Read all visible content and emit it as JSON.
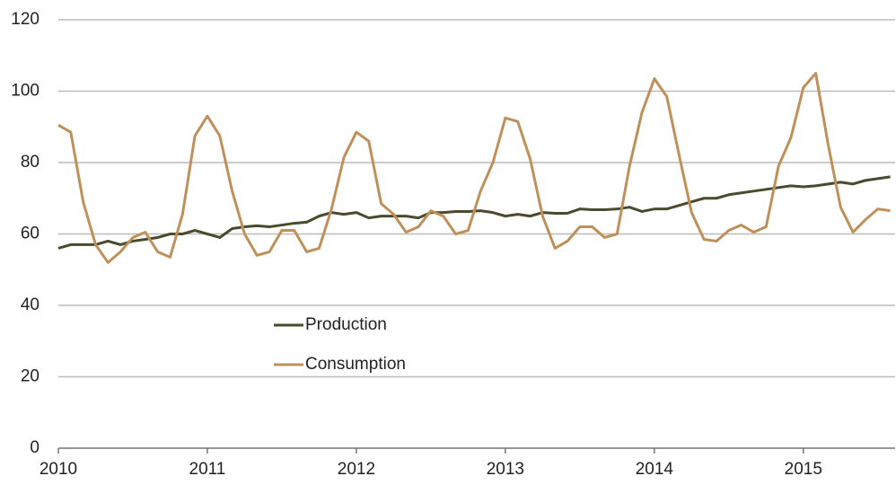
{
  "chart_data": {
    "type": "line",
    "categories": [
      "2010",
      null,
      null,
      null,
      null,
      null,
      null,
      null,
      null,
      null,
      null,
      null,
      "2011",
      null,
      null,
      null,
      null,
      null,
      null,
      null,
      null,
      null,
      null,
      null,
      "2012",
      null,
      null,
      null,
      null,
      null,
      null,
      null,
      null,
      null,
      null,
      null,
      "2013",
      null,
      null,
      null,
      null,
      null,
      null,
      null,
      null,
      null,
      null,
      null,
      "2014",
      null,
      null,
      null,
      null,
      null,
      null,
      null,
      null,
      null,
      null,
      null,
      "2015",
      null,
      null,
      null,
      null,
      null,
      null,
      null
    ],
    "series": [
      {
        "name": "Production",
        "color": "#4a4a2c",
        "values": [
          56,
          57,
          57,
          57,
          58,
          57,
          58,
          58.5,
          59,
          60,
          60,
          61,
          60,
          59,
          61.5,
          62,
          62.3,
          62,
          62.5,
          63,
          63.3,
          65,
          66,
          65.5,
          66,
          64.5,
          65,
          65,
          65,
          64.5,
          66,
          66,
          66.3,
          66.3,
          66.5,
          66,
          65,
          65.5,
          65,
          66,
          65.8,
          65.8,
          67,
          66.8,
          66.8,
          67,
          67.5,
          66.3,
          67,
          67,
          68,
          69,
          70,
          70,
          71,
          71.5,
          72,
          72.5,
          73,
          73.5,
          73.2,
          73.5,
          74,
          74.5,
          74,
          75,
          75.5,
          76
        ]
      },
      {
        "name": "Consumption",
        "color": "#c0905a",
        "values": [
          90.5,
          88.5,
          69,
          57,
          52,
          55,
          59,
          60.5,
          55,
          53.5,
          65.5,
          87.5,
          93,
          87.5,
          72,
          60,
          54,
          55,
          61,
          61,
          55,
          56,
          67,
          81.5,
          88.5,
          86,
          68.5,
          65.5,
          60.5,
          62,
          66.5,
          65,
          60,
          61,
          72,
          80,
          92.5,
          91.5,
          81,
          65,
          56,
          58,
          62,
          62,
          59,
          60,
          79,
          94,
          103.5,
          98.5,
          82,
          66,
          58.5,
          58,
          61,
          62.5,
          60.5,
          62,
          79,
          87,
          101,
          105,
          85,
          67.5,
          60.5,
          64,
          67,
          66.5
        ]
      }
    ],
    "ylim": [
      0,
      120
    ],
    "yticks": [
      0,
      20,
      40,
      60,
      80,
      100,
      120
    ],
    "grid": true,
    "legend": "center"
  }
}
